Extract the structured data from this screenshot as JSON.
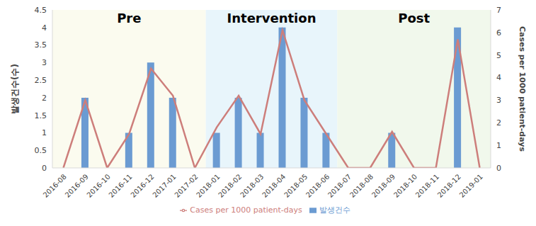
{
  "chart_data": {
    "type": "bar_line",
    "categories": [
      "2016-08",
      "2016-09",
      "2016-10",
      "2016-11",
      "2016-12",
      "2017-01",
      "2017-02",
      "2018-01",
      "2018-02",
      "2018-03",
      "2018-04",
      "2018-05",
      "2018-06",
      "2018-07",
      "2018-08",
      "2018-09",
      "2018-10",
      "2018-11",
      "2018-12",
      "2019-01"
    ],
    "series": [
      {
        "name": "발생건수",
        "type": "bar",
        "color": "#6b9bd2",
        "values": [
          0,
          2,
          0,
          1,
          3,
          2,
          0,
          1,
          2,
          1,
          4,
          2,
          1,
          0,
          0,
          1,
          0,
          0,
          4,
          0
        ]
      },
      {
        "name": "Cases per 1000 patient-days",
        "type": "line",
        "axis": "y2",
        "color": "#cd7e7b",
        "values": [
          0,
          3.0,
          0,
          1.5,
          4.4,
          3.2,
          0,
          1.8,
          3.2,
          1.5,
          6.1,
          3.0,
          1.5,
          0,
          0,
          1.6,
          0,
          0,
          5.7,
          0
        ]
      }
    ],
    "y_label": "발생건수(수)",
    "y2_label": "Cases per 1000 patient-days",
    "ylim": [
      0,
      4.5
    ],
    "yticks": [
      0,
      0.5,
      1,
      1.5,
      2,
      2.5,
      3,
      3.5,
      4,
      4.5
    ],
    "y2lim": [
      0,
      7
    ],
    "y2ticks": [
      0,
      1,
      2,
      3,
      4,
      5,
      6,
      7
    ],
    "legend": "bottom",
    "grid": false,
    "annotations": [
      {
        "text": "Pre",
        "x1": "2016-08",
        "x2": "2017-02",
        "color": "#fbfbef"
      },
      {
        "text": "Intervention",
        "x1": "2018-01",
        "x2": "2018-06",
        "color": "#e8f5fb"
      },
      {
        "text": "Post",
        "x1": "2018-07",
        "x2": "2019-01",
        "color": "#f1f8ec"
      }
    ]
  }
}
